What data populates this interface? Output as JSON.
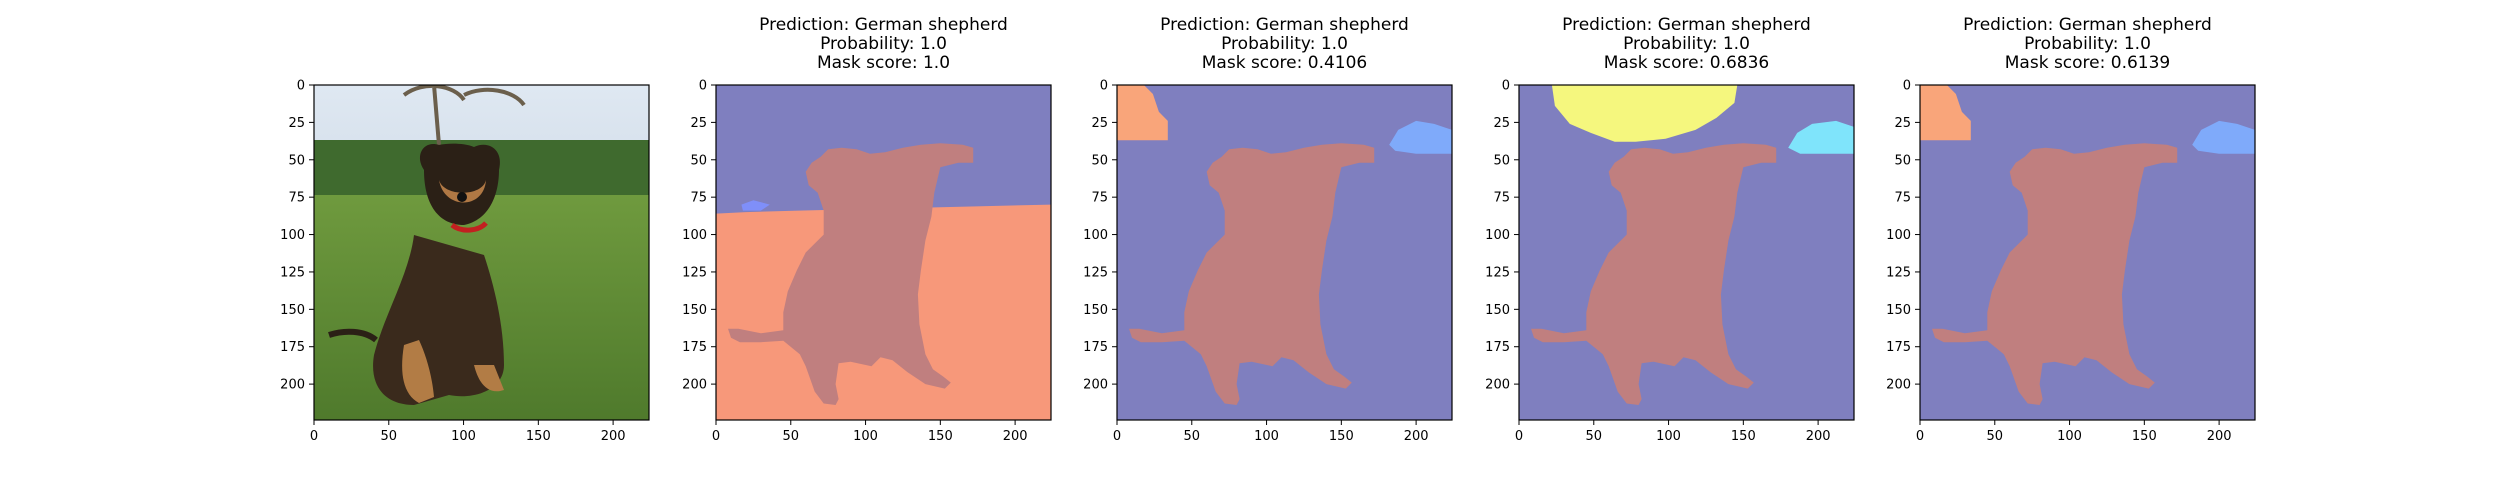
{
  "figure": {
    "panels": [
      {
        "kind": "photo",
        "title_lines": [],
        "x_ticks": [
          "0",
          "50",
          "100",
          "150",
          "200"
        ],
        "y_ticks": [
          "0",
          "25",
          "50",
          "75",
          "100",
          "125",
          "150",
          "175",
          "200"
        ]
      },
      {
        "kind": "mask",
        "title_lines": [
          "Prediction: German shepherd",
          "Probability: 1.0",
          "Mask score: 1.0"
        ],
        "x_ticks": [
          "0",
          "50",
          "100",
          "150",
          "200"
        ],
        "y_ticks": [
          "0",
          "25",
          "50",
          "75",
          "100",
          "125",
          "150",
          "175",
          "200"
        ],
        "regions": [
          "background-orange-lower"
        ]
      },
      {
        "kind": "mask",
        "title_lines": [
          "Prediction: German shepherd",
          "Probability: 1.0",
          "Mask score: 0.4106"
        ],
        "x_ticks": [
          "0",
          "50",
          "100",
          "150",
          "200"
        ],
        "y_ticks": [
          "0",
          "25",
          "50",
          "75",
          "100",
          "125",
          "150",
          "175",
          "200"
        ],
        "regions": [
          "corner-orange-top-left",
          "blob-blue-top-right"
        ]
      },
      {
        "kind": "mask",
        "title_lines": [
          "Prediction: German shepherd",
          "Probability: 1.0",
          "Mask score: 0.6836"
        ],
        "x_ticks": [
          "0",
          "50",
          "100",
          "150",
          "200"
        ],
        "y_ticks": [
          "0",
          "25",
          "50",
          "75",
          "100",
          "125",
          "150",
          "175",
          "200"
        ],
        "regions": [
          "blob-yellow-top",
          "blob-cyan-top-right"
        ]
      },
      {
        "kind": "mask",
        "title_lines": [
          "Prediction: German shepherd",
          "Probability: 1.0",
          "Mask score: 0.6139"
        ],
        "x_ticks": [
          "0",
          "50",
          "100",
          "150",
          "200"
        ],
        "y_ticks": [
          "0",
          "25",
          "50",
          "75",
          "100",
          "125",
          "150",
          "175",
          "200"
        ],
        "regions": [
          "corner-orange-top-left",
          "blob-blue-top-right"
        ]
      }
    ],
    "colors": {
      "mask_background": "#7f7fbf",
      "dog_mask": "#c07f7f",
      "orange_region": "#f7987a",
      "orange_corner": "#f9a57a",
      "yellow_region": "#f5f77e",
      "cyan_region": "#7fe4fb",
      "blue_region": "#7f8ff9",
      "blue_region_2": "#7faafa",
      "axis": "#000000"
    }
  }
}
